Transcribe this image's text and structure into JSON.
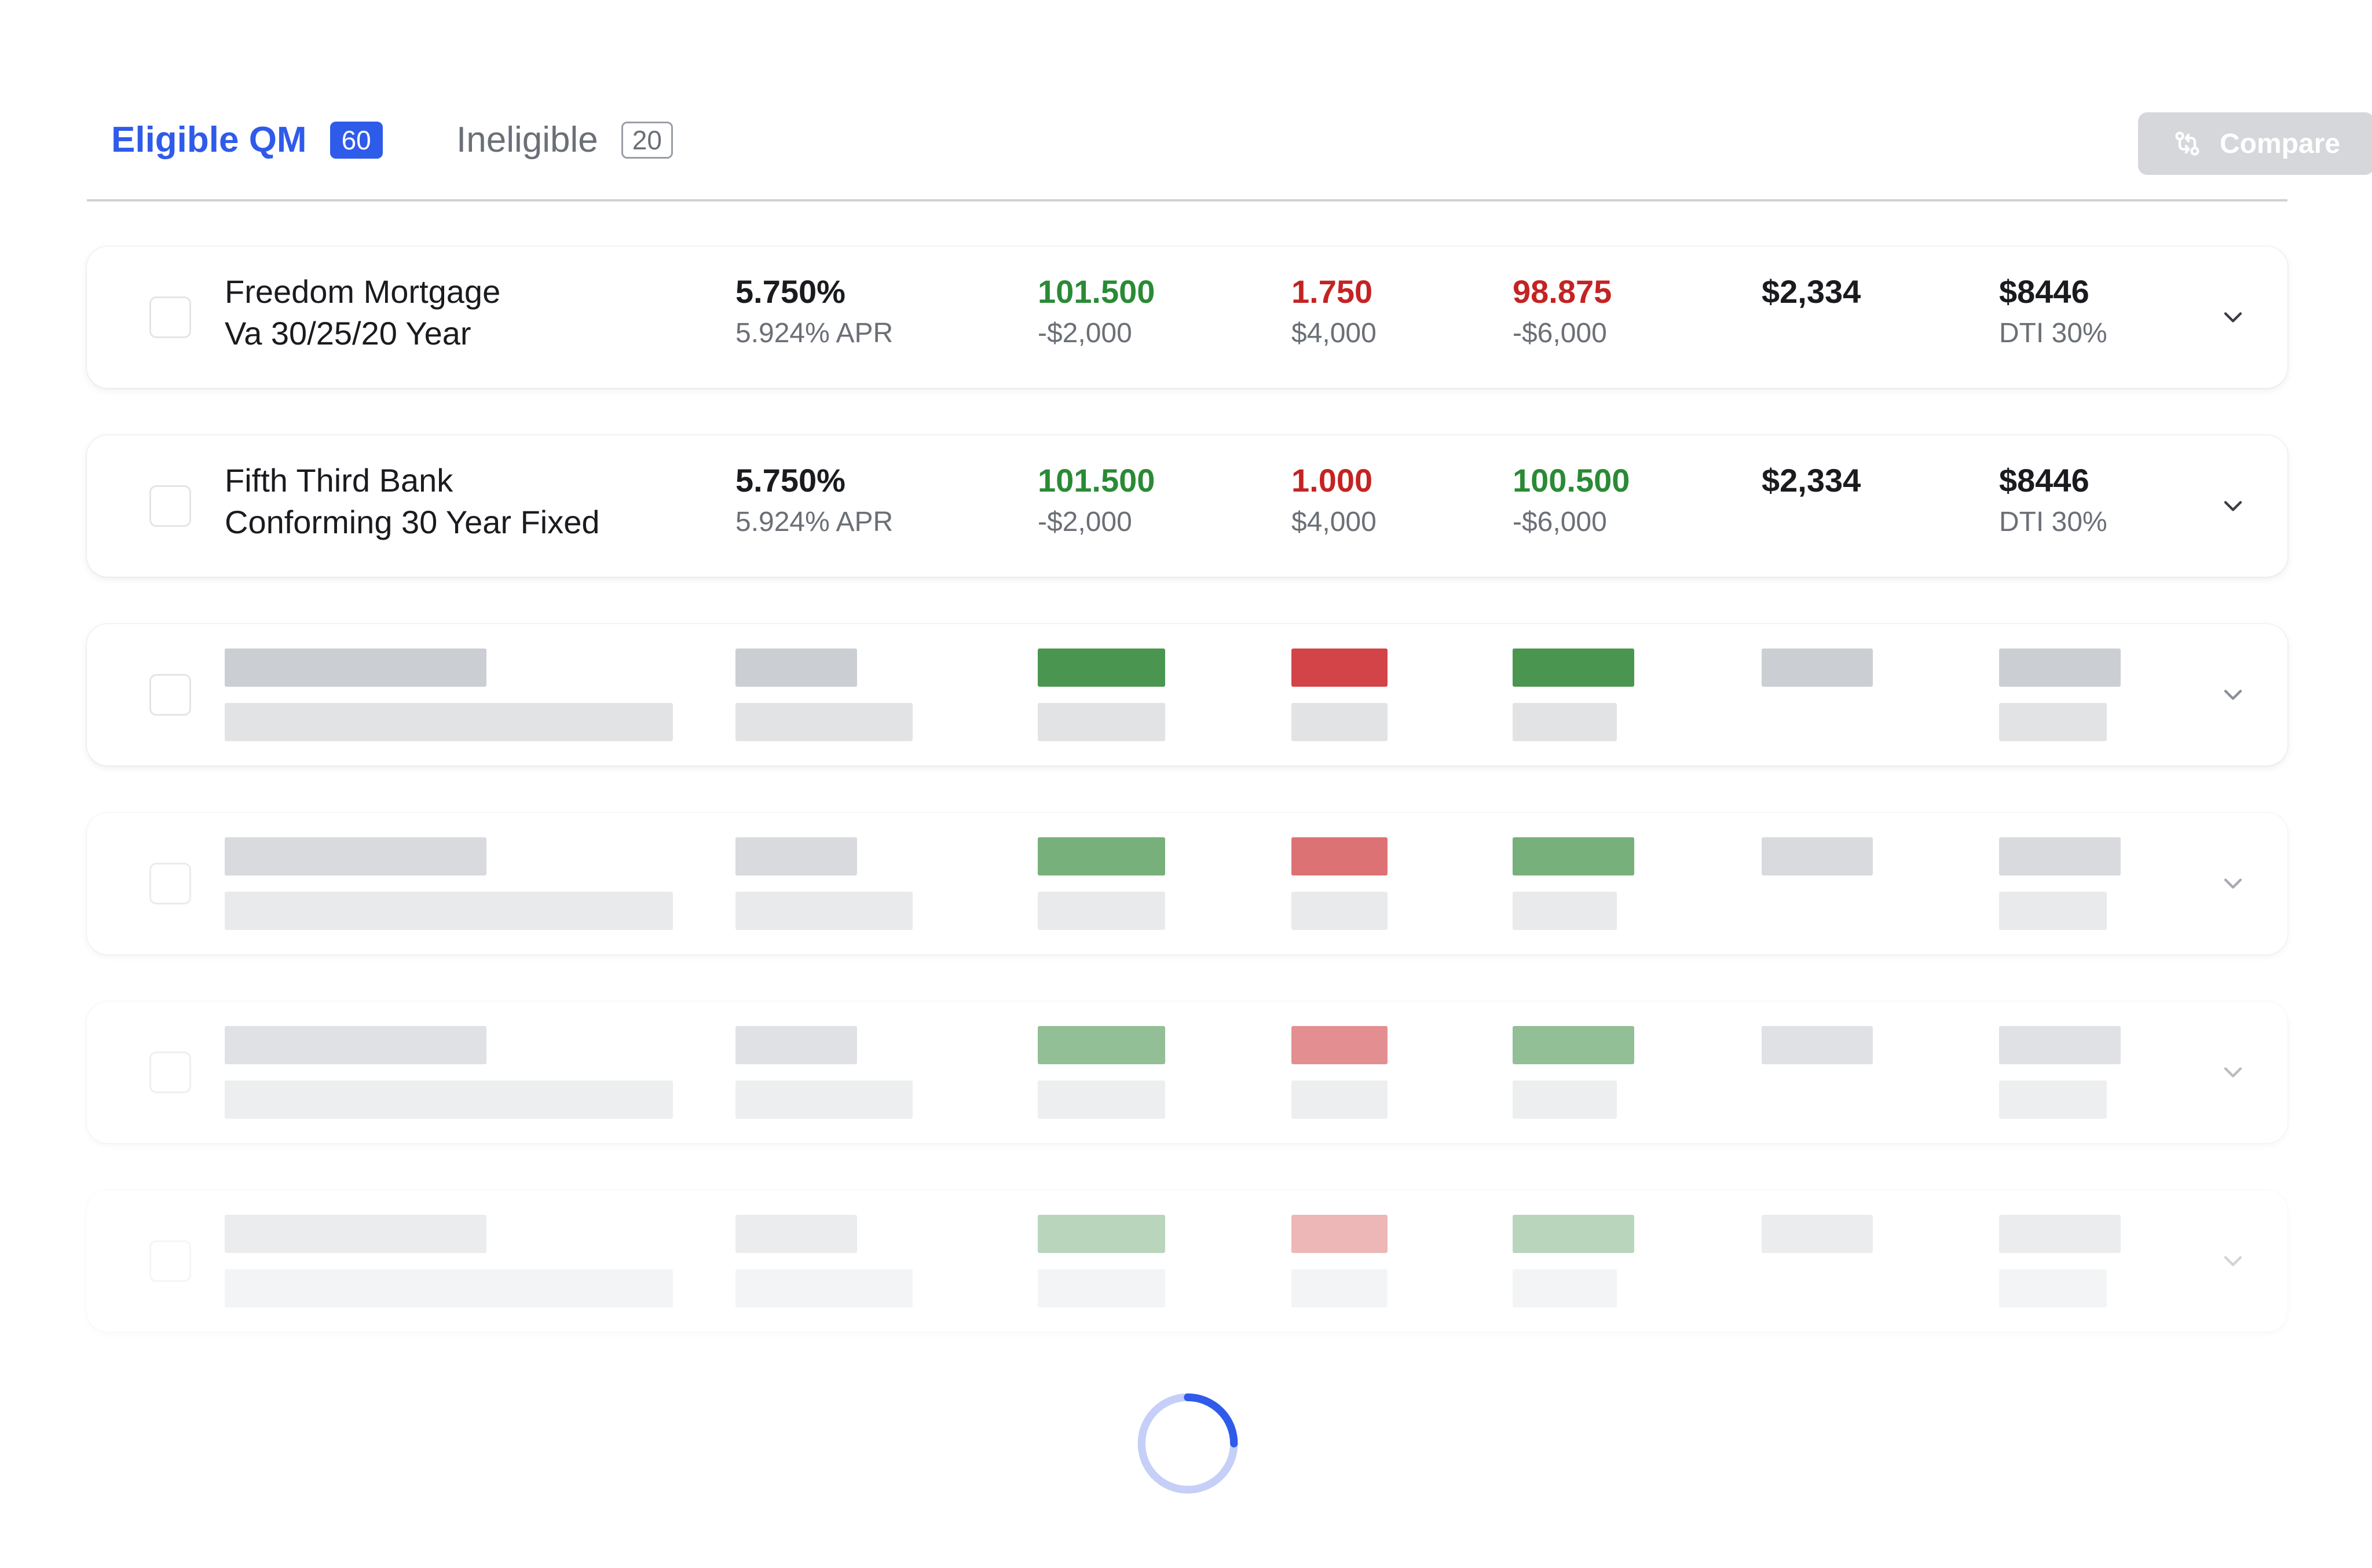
{
  "tabs": {
    "eligible": {
      "label": "Eligible QM",
      "count": "60"
    },
    "ineligible": {
      "label": "Ineligible",
      "count": "20"
    }
  },
  "compare_label": "Compare",
  "rows": [
    {
      "lender": "Freedom Mortgage",
      "product": "Va 30/25/20 Year",
      "rate": "5.750%",
      "apr": "5.924% APR",
      "price1": "101.500",
      "price1_sub": "-$2,000",
      "price1_color": "green",
      "price2": "1.750",
      "price2_sub": "$4,000",
      "price2_color": "red",
      "price3": "98.875",
      "price3_sub": "-$6,000",
      "price3_color": "red",
      "payment": "$2,334",
      "total": "$8446",
      "dti": "DTI 30%"
    },
    {
      "lender": "Fifth Third Bank",
      "product": "Conforming 30 Year Fixed",
      "rate": "5.750%",
      "apr": "5.924% APR",
      "price1": "101.500",
      "price1_sub": "-$2,000",
      "price1_color": "green",
      "price2": "1.000",
      "price2_sub": "$4,000",
      "price2_color": "red",
      "price3": "100.500",
      "price3_sub": "-$6,000",
      "price3_color": "green",
      "payment": "$2,334",
      "total": "$8446",
      "dti": "DTI 30%"
    }
  ],
  "skeleton_rows": 4,
  "colors": {
    "accent": "#2f5bea",
    "positive": "#2a8a36",
    "negative": "#c42323",
    "skeleton_green": "#4a9650",
    "skeleton_red": "#d24448"
  }
}
